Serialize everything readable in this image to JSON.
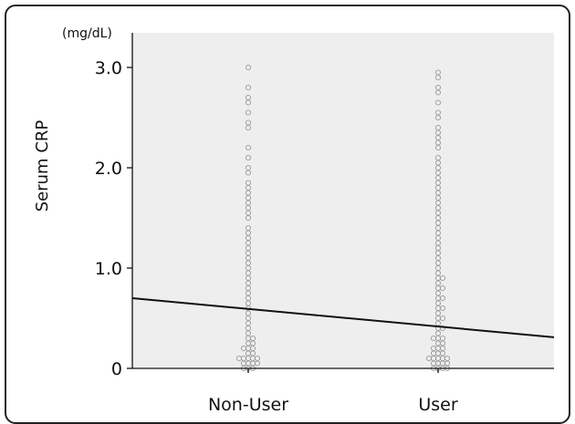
{
  "chart_data": {
    "type": "scatter",
    "title": "",
    "ylabel": "Serum CRP",
    "y_unit": "(mg/dL)",
    "xlabel": "",
    "categories": [
      "Non-User",
      "User"
    ],
    "ylim": [
      0,
      3.0
    ],
    "yticks": [
      {
        "value": 0,
        "label": "0"
      },
      {
        "value": 1.0,
        "label": "1.0"
      },
      {
        "value": 2.0,
        "label": "2.0"
      },
      {
        "value": 3.0,
        "label": "3.0"
      }
    ],
    "grid": false,
    "plot_background": "#eeeeee",
    "point_color": "#9a9a9a",
    "line_color": "#111111",
    "trend_line": {
      "start": 0.7,
      "end": 0.31
    },
    "groups": [
      {
        "category": "Non-User",
        "values": [
          3.0,
          2.8,
          2.7,
          2.65,
          2.55,
          2.45,
          2.4,
          2.2,
          2.1,
          2.0,
          1.95,
          1.85,
          1.8,
          1.75,
          1.7,
          1.65,
          1.6,
          1.55,
          1.5,
          1.4,
          1.35,
          1.3,
          1.25,
          1.2,
          1.15,
          1.1,
          1.05,
          1.0,
          0.95,
          0.9,
          0.85,
          0.8,
          0.75,
          0.7,
          0.65,
          0.6,
          0.55,
          0.5,
          0.45,
          0.4,
          0.35,
          0.3,
          0.3,
          0.25,
          0.25,
          0.2,
          0.2,
          0.2,
          0.15,
          0.15,
          0.1,
          0.1,
          0.1,
          0.1,
          0.1,
          0.05,
          0.05,
          0.05,
          0.05,
          0.0,
          0.0,
          0.0
        ]
      },
      {
        "category": "User",
        "values": [
          2.95,
          2.9,
          2.8,
          2.75,
          2.65,
          2.55,
          2.5,
          2.4,
          2.35,
          2.3,
          2.25,
          2.2,
          2.1,
          2.05,
          2.0,
          1.95,
          1.9,
          1.85,
          1.8,
          1.75,
          1.7,
          1.65,
          1.6,
          1.55,
          1.5,
          1.45,
          1.4,
          1.35,
          1.3,
          1.25,
          1.2,
          1.15,
          1.1,
          1.05,
          1.0,
          0.95,
          0.9,
          0.9,
          0.85,
          0.8,
          0.8,
          0.75,
          0.7,
          0.7,
          0.65,
          0.6,
          0.6,
          0.55,
          0.5,
          0.5,
          0.45,
          0.4,
          0.4,
          0.35,
          0.3,
          0.3,
          0.3,
          0.25,
          0.25,
          0.2,
          0.2,
          0.2,
          0.15,
          0.15,
          0.15,
          0.1,
          0.1,
          0.1,
          0.1,
          0.1,
          0.05,
          0.05,
          0.05,
          0.05,
          0.0,
          0.0,
          0.0,
          0.0
        ]
      }
    ]
  }
}
